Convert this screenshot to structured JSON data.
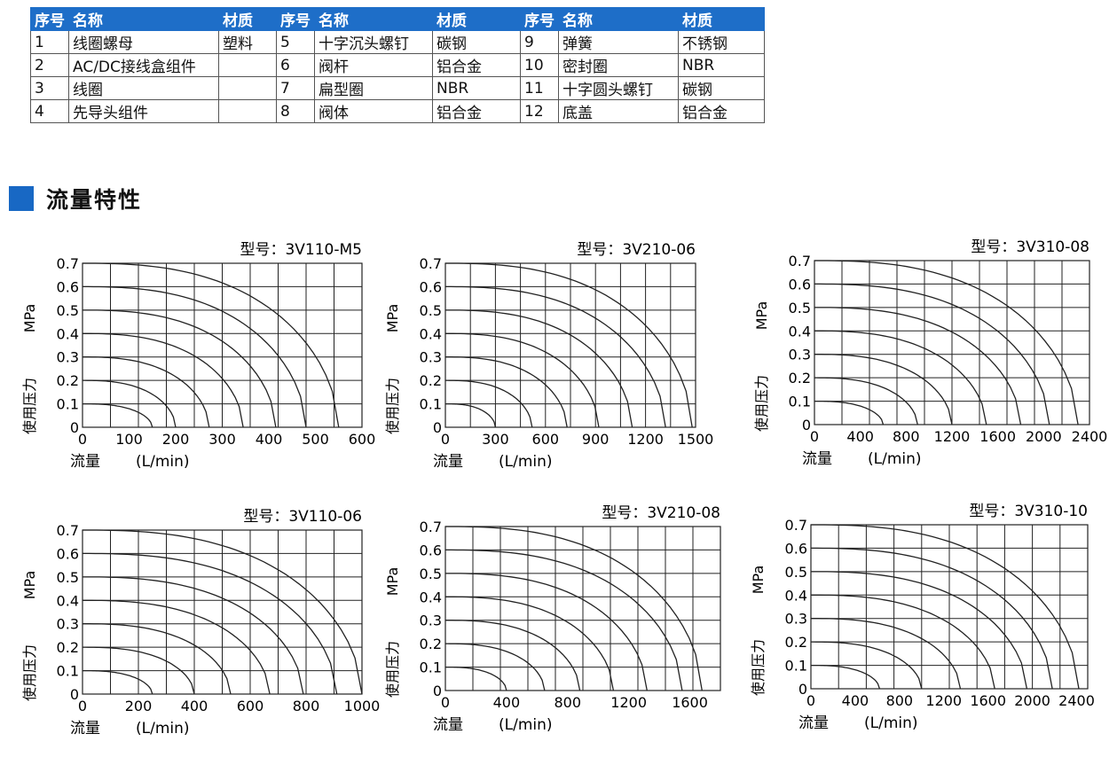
{
  "parts_table": {
    "headers": [
      "序号",
      "名称",
      "材质",
      "序号",
      "名称",
      "材质",
      "序号",
      "名称",
      "材质"
    ],
    "rows": [
      [
        "1",
        "线圈螺母",
        "塑料",
        "5",
        "十字沉头螺钉",
        "碳钢",
        "9",
        "弹簧",
        "不锈钢"
      ],
      [
        "2",
        "AC/DC接线盒组件",
        "",
        "6",
        "阀杆",
        "铝合金",
        "10",
        "密封圈",
        "NBR"
      ],
      [
        "3",
        "线圈",
        "",
        "7",
        "扁型圈",
        "NBR",
        "11",
        "十字圆头螺钉",
        "碳钢"
      ],
      [
        "4",
        "先导头组件",
        "",
        "8",
        "阀体",
        "铝合金",
        "12",
        "底盖",
        "铝合金"
      ]
    ]
  },
  "section": {
    "title": "流量特性"
  },
  "colors": {
    "accent": "#1e6ec8",
    "grid": "#222222",
    "curve": "#222222"
  },
  "chart_data": [
    {
      "type": "line",
      "title": "型号：3V110-M5",
      "ylabel_top": "MPa",
      "ylabel_bottom": "使用压力",
      "xlabel": "流量",
      "xunit": "(L/min)",
      "xlim": [
        0,
        600
      ],
      "ylim": [
        0,
        0.7
      ],
      "xticks": [
        0,
        100,
        200,
        300,
        400,
        500,
        600
      ],
      "yticks": [
        0,
        0.1,
        0.2,
        0.3,
        0.4,
        0.5,
        0.6,
        0.7
      ],
      "series": [
        {
          "p0": 0.1,
          "x": [
            0,
            150
          ]
        },
        {
          "p0": 0.2,
          "x": [
            0,
            200
          ]
        },
        {
          "p0": 0.3,
          "x": [
            0,
            272
          ]
        },
        {
          "p0": 0.4,
          "x": [
            0,
            345
          ]
        },
        {
          "p0": 0.5,
          "x": [
            0,
            415
          ]
        },
        {
          "p0": 0.6,
          "x": [
            0,
            480
          ]
        },
        {
          "p0": 0.7,
          "x": [
            0,
            550
          ]
        }
      ]
    },
    {
      "type": "line",
      "title": "型号：3V210-06",
      "ylabel_top": "MPa",
      "ylabel_bottom": "使用压力",
      "xlabel": "流量",
      "xunit": "(L/min)",
      "xlim": [
        0,
        1500
      ],
      "ylim": [
        0,
        0.7
      ],
      "xticks": [
        0,
        300,
        600,
        900,
        1200,
        1500
      ],
      "yticks": [
        0,
        0.1,
        0.2,
        0.3,
        0.4,
        0.5,
        0.6,
        0.7
      ],
      "series": [
        {
          "p0": 0.1,
          "x": [
            0,
            300
          ]
        },
        {
          "p0": 0.2,
          "x": [
            0,
            520
          ]
        },
        {
          "p0": 0.3,
          "x": [
            0,
            730
          ]
        },
        {
          "p0": 0.4,
          "x": [
            0,
            920
          ]
        },
        {
          "p0": 0.5,
          "x": [
            0,
            1120
          ]
        },
        {
          "p0": 0.6,
          "x": [
            0,
            1320
          ]
        },
        {
          "p0": 0.7,
          "x": [
            0,
            1480
          ]
        }
      ]
    },
    {
      "type": "line",
      "title": "型号：3V310-08",
      "ylabel_top": "MPa",
      "ylabel_bottom": "使用压力",
      "xlabel": "流量",
      "xunit": "(L/min)",
      "xlim": [
        0,
        2400
      ],
      "ylim": [
        0,
        0.7
      ],
      "xticks": [
        0,
        400,
        800,
        1200,
        1600,
        2000,
        2400
      ],
      "yticks": [
        0,
        0.1,
        0.2,
        0.3,
        0.4,
        0.5,
        0.6,
        0.7
      ],
      "series": [
        {
          "p0": 0.1,
          "x": [
            0,
            600
          ]
        },
        {
          "p0": 0.2,
          "x": [
            0,
            900
          ]
        },
        {
          "p0": 0.3,
          "x": [
            0,
            1200
          ]
        },
        {
          "p0": 0.4,
          "x": [
            0,
            1500
          ]
        },
        {
          "p0": 0.5,
          "x": [
            0,
            1800
          ]
        },
        {
          "p0": 0.6,
          "x": [
            0,
            2050
          ]
        },
        {
          "p0": 0.7,
          "x": [
            0,
            2300
          ]
        }
      ]
    },
    {
      "type": "line",
      "title": "型号：3V110-06",
      "ylabel_top": "MPa",
      "ylabel_bottom": "使用压力",
      "xlabel": "流量",
      "xunit": "(L/min)",
      "xlim": [
        0,
        1000
      ],
      "ylim": [
        0,
        0.7
      ],
      "xticks": [
        0,
        200,
        400,
        600,
        800,
        1000
      ],
      "yticks": [
        0,
        0.1,
        0.2,
        0.3,
        0.4,
        0.5,
        0.6,
        0.7
      ],
      "series": [
        {
          "p0": 0.1,
          "x": [
            0,
            250
          ]
        },
        {
          "p0": 0.2,
          "x": [
            0,
            400
          ]
        },
        {
          "p0": 0.3,
          "x": [
            0,
            530
          ]
        },
        {
          "p0": 0.4,
          "x": [
            0,
            670
          ]
        },
        {
          "p0": 0.5,
          "x": [
            0,
            790
          ]
        },
        {
          "p0": 0.6,
          "x": [
            0,
            910
          ]
        },
        {
          "p0": 0.7,
          "x": [
            0,
            1000
          ]
        }
      ]
    },
    {
      "type": "line",
      "title": "型号：3V210-08",
      "ylabel_top": "MPa",
      "ylabel_bottom": "使用压力",
      "xlabel": "流量",
      "xunit": "(L/min)",
      "xlim": [
        0,
        1800
      ],
      "ylim": [
        0,
        0.7
      ],
      "xticks": [
        0,
        400,
        800,
        1200,
        1600
      ],
      "yticks": [
        0,
        0.1,
        0.2,
        0.3,
        0.4,
        0.5,
        0.6,
        0.7
      ],
      "series": [
        {
          "p0": 0.1,
          "x": [
            0,
            400
          ]
        },
        {
          "p0": 0.2,
          "x": [
            0,
            650
          ]
        },
        {
          "p0": 0.3,
          "x": [
            0,
            880
          ]
        },
        {
          "p0": 0.4,
          "x": [
            0,
            1100
          ]
        },
        {
          "p0": 0.5,
          "x": [
            0,
            1320
          ]
        },
        {
          "p0": 0.6,
          "x": [
            0,
            1550
          ]
        },
        {
          "p0": 0.7,
          "x": [
            0,
            1680
          ]
        }
      ]
    },
    {
      "type": "line",
      "title": "型号：3V310-10",
      "ylabel_top": "MPa",
      "ylabel_bottom": "使用压力",
      "xlabel": "流量",
      "xunit": "(L/min)",
      "xlim": [
        0,
        2500
      ],
      "ylim": [
        0,
        0.7
      ],
      "xticks": [
        0,
        400,
        800,
        1200,
        1600,
        2000,
        2400
      ],
      "yticks": [
        0,
        0.1,
        0.2,
        0.3,
        0.4,
        0.5,
        0.6,
        0.7
      ],
      "series": [
        {
          "p0": 0.1,
          "x": [
            0,
            620
          ]
        },
        {
          "p0": 0.2,
          "x": [
            0,
            1000
          ]
        },
        {
          "p0": 0.3,
          "x": [
            0,
            1350
          ]
        },
        {
          "p0": 0.4,
          "x": [
            0,
            1660
          ]
        },
        {
          "p0": 0.5,
          "x": [
            0,
            1950
          ]
        },
        {
          "p0": 0.6,
          "x": [
            0,
            2180
          ]
        },
        {
          "p0": 0.7,
          "x": [
            0,
            2420
          ]
        }
      ]
    }
  ]
}
